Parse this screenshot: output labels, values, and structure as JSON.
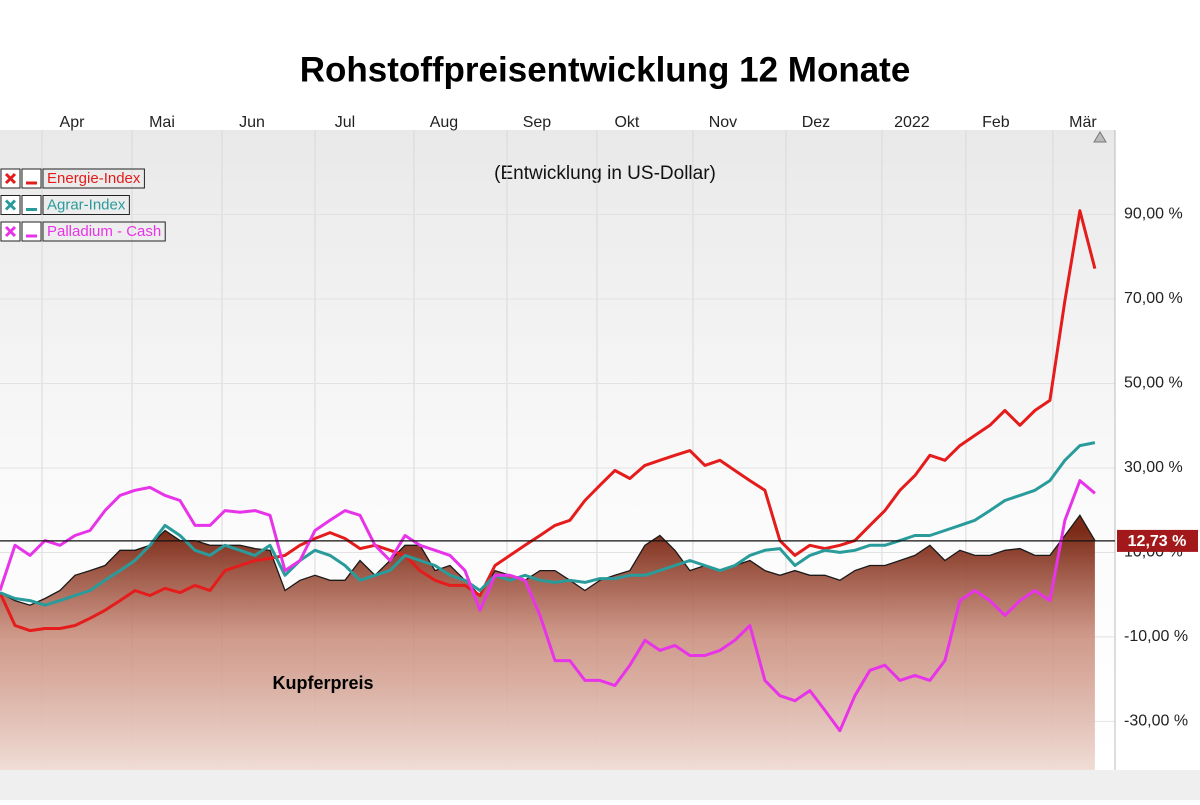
{
  "chart_data": {
    "type": "line",
    "title": "Rohstoffpreisentwicklung 12 Monate",
    "subtitle": "(Entwicklung in US-Dollar)",
    "x": [
      0,
      5,
      10,
      15,
      20,
      25,
      30,
      35,
      40,
      45,
      50,
      55,
      60,
      65,
      70,
      75,
      80,
      85,
      90,
      95,
      100,
      105,
      110,
      115,
      120,
      125,
      130,
      135,
      140,
      145,
      150,
      155,
      160,
      165,
      170,
      175,
      180,
      185,
      190,
      195,
      200,
      205,
      210,
      215,
      220,
      225,
      230,
      235,
      240,
      245,
      250,
      255,
      260,
      265,
      270,
      275,
      280,
      285,
      290,
      295,
      300,
      305,
      310,
      315,
      320,
      325,
      330,
      335,
      340,
      345,
      350,
      355,
      360,
      365
    ],
    "xlim": [
      0,
      371.7
    ],
    "xticks": [
      {
        "value": 24,
        "label": "Apr"
      },
      {
        "value": 54,
        "label": "Mai"
      },
      {
        "value": 84,
        "label": "Jun"
      },
      {
        "value": 115,
        "label": "Jul"
      },
      {
        "value": 148,
        "label": "Aug"
      },
      {
        "value": 179,
        "label": "Sep"
      },
      {
        "value": 209,
        "label": "Okt"
      },
      {
        "value": 241,
        "label": "Nov"
      },
      {
        "value": 272,
        "label": "Dez"
      },
      {
        "value": 304,
        "label": "2022"
      },
      {
        "value": 332,
        "label": "Feb"
      },
      {
        "value": 361,
        "label": "Mär"
      }
    ],
    "ylim": [
      -41.5,
      110
    ],
    "yticks": [
      {
        "value": 90,
        "label": "90,00 %"
      },
      {
        "value": 70,
        "label": "70,00 %"
      },
      {
        "value": 50,
        "label": "50,00 %"
      },
      {
        "value": 30,
        "label": "30,00 %"
      },
      {
        "value": 10,
        "label": "10,00 %"
      },
      {
        "value": -10,
        "label": "-10,00 %"
      },
      {
        "value": -30,
        "label": "-30,00 %"
      }
    ],
    "grid": true,
    "legend": "upper left",
    "series": [
      {
        "name": "Energie-Index",
        "color": "#e51c1c",
        "values": [
          0.5,
          -7.3,
          -8.5,
          -8,
          -8,
          -7.3,
          -5.6,
          -3.7,
          -1.4,
          1.0,
          -0.2,
          1.5,
          0.5,
          2.2,
          1.0,
          5.7,
          6.9,
          8.1,
          8.6,
          9.3,
          11.7,
          13.3,
          14.7,
          13.3,
          10.9,
          11.7,
          10.5,
          9.3,
          5.7,
          3.4,
          2.2,
          2.2,
          -0.2,
          6.9,
          9.3,
          11.7,
          14.0,
          16.4,
          17.6,
          22.3,
          25.9,
          29.4,
          27.5,
          30.6,
          31.8,
          33.0,
          34.1,
          30.6,
          31.8,
          29.4,
          27.0,
          24.7,
          12.8,
          9.3,
          11.7,
          10.9,
          11.7,
          12.8,
          16.4,
          19.9,
          24.7,
          28.2,
          33.0,
          31.8,
          35.3,
          37.7,
          40.1,
          43.6,
          40.1,
          43.6,
          46.0,
          69.6,
          90.9,
          77.2
        ]
      },
      {
        "name": "Agrar-Index",
        "color": "#2a9b9b",
        "values": [
          0.5,
          -0.9,
          -1.4,
          -2.5,
          -1.4,
          -0.2,
          1.0,
          3.4,
          5.7,
          8.1,
          11.7,
          16.4,
          14.0,
          10.5,
          9.3,
          11.7,
          10.5,
          9.3,
          11.7,
          4.6,
          8.1,
          10.5,
          9.3,
          6.9,
          3.4,
          4.6,
          5.7,
          9.3,
          8.1,
          6.9,
          4.6,
          3.4,
          1.0,
          4.6,
          3.4,
          4.6,
          3.4,
          2.9,
          3.4,
          2.9,
          3.8,
          3.8,
          4.6,
          4.6,
          5.7,
          6.9,
          8.1,
          6.9,
          5.7,
          6.9,
          9.3,
          10.5,
          10.9,
          6.9,
          9.3,
          10.5,
          10.0,
          10.5,
          11.7,
          11.7,
          12.8,
          14.0,
          14.0,
          15.2,
          16.4,
          17.6,
          19.9,
          22.3,
          23.5,
          24.7,
          27.0,
          31.8,
          35.3,
          36.0
        ]
      },
      {
        "name": "Palladium - Cash",
        "color": "#e834e8",
        "values": [
          1.0,
          11.7,
          9.3,
          12.8,
          11.7,
          14.0,
          15.2,
          19.9,
          23.5,
          24.7,
          25.4,
          23.5,
          22.3,
          16.4,
          16.4,
          19.9,
          19.5,
          19.9,
          18.8,
          5.7,
          8.1,
          15.2,
          17.6,
          19.9,
          18.8,
          11.7,
          8.1,
          14.0,
          11.7,
          10.5,
          9.3,
          5.7,
          -3.7,
          4.6,
          4.6,
          3.4,
          -4.9,
          -15.6,
          -15.6,
          -20.3,
          -20.3,
          -21.5,
          -16.7,
          -10.8,
          -13.2,
          -12.0,
          -14.4,
          -14.4,
          -13.2,
          -10.8,
          -7.3,
          -20.3,
          -23.9,
          -25.1,
          -22.7,
          -27.4,
          -32.2,
          -23.9,
          -17.9,
          -16.7,
          -20.3,
          -19.1,
          -20.3,
          -15.6,
          -1.4,
          1.0,
          -1.4,
          -4.9,
          -1.4,
          1.0,
          -1.4,
          17.6,
          27.0,
          24.0
        ]
      }
    ],
    "area": {
      "name": "Kupferpreis",
      "color": "#7b2a17",
      "values": [
        0.5,
        -1.4,
        -2.5,
        -0.9,
        1.0,
        4.6,
        5.7,
        6.9,
        10.5,
        10.5,
        11.7,
        15.2,
        12.8,
        12.8,
        11.7,
        11.7,
        11.7,
        10.9,
        10.5,
        1.0,
        3.4,
        4.6,
        3.4,
        3.4,
        8.1,
        4.6,
        8.1,
        11.7,
        11.7,
        5.7,
        6.9,
        3.4,
        -0.2,
        5.7,
        4.6,
        3.4,
        5.7,
        5.7,
        3.4,
        1.0,
        3.4,
        4.6,
        5.7,
        11.7,
        14.0,
        10.5,
        5.7,
        6.9,
        5.7,
        6.9,
        8.1,
        5.7,
        4.6,
        5.7,
        4.6,
        4.6,
        3.4,
        5.7,
        6.9,
        6.9,
        8.1,
        9.3,
        11.7,
        8.1,
        10.5,
        9.3,
        9.3,
        10.5,
        10.9,
        9.3,
        9.3,
        14.0,
        18.8,
        12.8
      ]
    },
    "reference": {
      "value": 12.73,
      "label": "12,73 %",
      "color": "#a3191b"
    }
  }
}
